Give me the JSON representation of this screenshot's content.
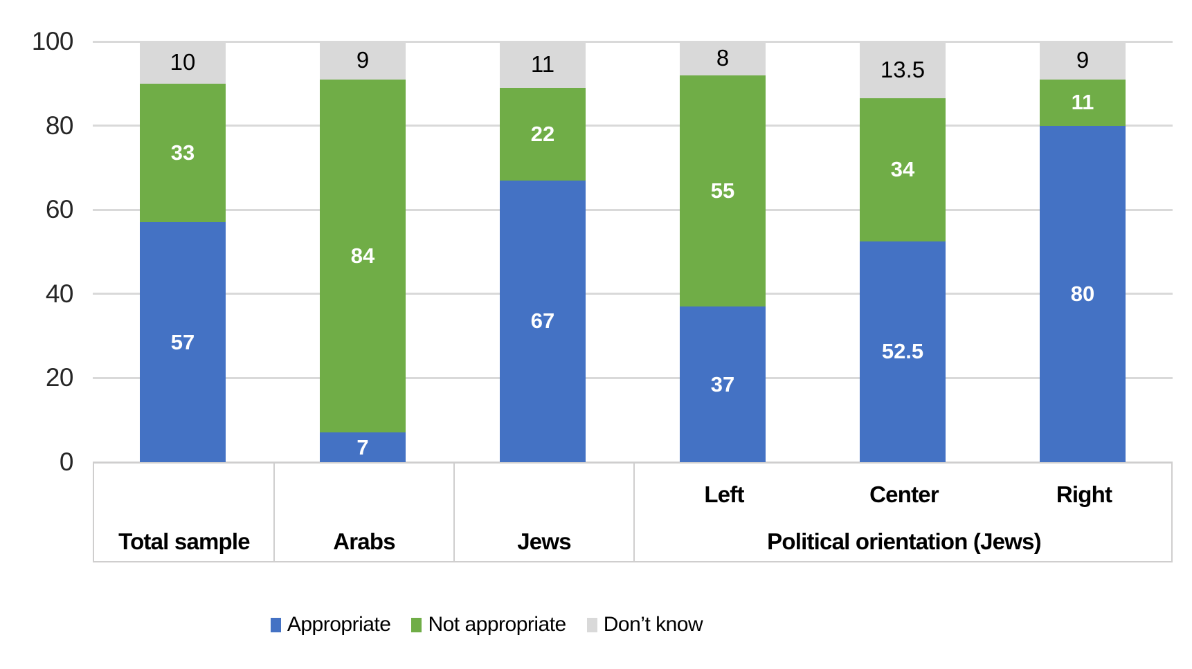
{
  "chart_data": {
    "type": "bar",
    "stacked": true,
    "title": "",
    "categories": [
      "Total sample",
      "Arabs",
      "Jews",
      "Left",
      "Center",
      "Right"
    ],
    "series": [
      {
        "name": "Appropriate",
        "color": "#4472C4",
        "label_color": "#FFFFFF",
        "label_bold": true,
        "values": [
          57,
          7,
          67,
          37,
          52.5,
          80
        ]
      },
      {
        "name": "Not appropriate",
        "color": "#70AD47",
        "label_color": "#FFFFFF",
        "label_bold": true,
        "values": [
          33,
          84,
          22,
          55,
          34,
          11
        ]
      },
      {
        "name": "Don’t know",
        "color": "#D9D9D9",
        "label_color": "#000000",
        "label_bold": false,
        "values": [
          10,
          9,
          11,
          8,
          13.5,
          9
        ]
      }
    ],
    "y_axis": {
      "min": 0,
      "max": 100,
      "tick_interval": 20,
      "tick_labels": [
        "0",
        "20",
        "40",
        "60",
        "80",
        "100"
      ]
    },
    "x_axis": {
      "top_level_cells": [
        "Total sample",
        "Arabs",
        "Jews"
      ],
      "group": {
        "label": "Political orientation (Jews)",
        "members": [
          "Left",
          "Center",
          "Right"
        ]
      }
    },
    "grid": true,
    "legend_position": "bottom",
    "colors": {
      "grid": "#D9D9D9",
      "axis_border": "#CFCECE",
      "tick_text": "#262626"
    }
  }
}
